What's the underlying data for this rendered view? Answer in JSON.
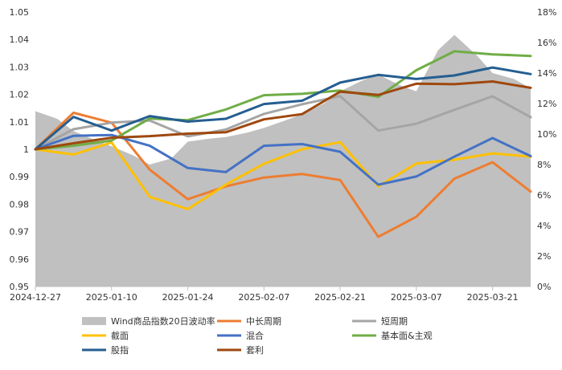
{
  "chart_data": {
    "type": "line",
    "title": "",
    "x": [
      "2024-12-27",
      "2025-01-03",
      "2025-01-10",
      "2025-01-17",
      "2025-01-24",
      "2025-01-31",
      "2025-02-07",
      "2025-02-14",
      "2025-02-21",
      "2025-02-28",
      "2025-03-07",
      "2025-03-14",
      "2025-03-21",
      "2025-03-28"
    ],
    "x_tick_labels": [
      "2024-12-27",
      "2025-01-10",
      "2025-01-24",
      "2025-02-07",
      "2025-02-21",
      "2025-03-07",
      "2025-03-21"
    ],
    "y_left": {
      "min": 0.95,
      "max": 1.05,
      "ticks": [
        "0.95",
        "0.96",
        "0.97",
        "0.98",
        "0.99",
        "1",
        "1.01",
        "1.02",
        "1.03",
        "1.04",
        "1.05"
      ]
    },
    "y_right": {
      "min": 0,
      "max": 18,
      "ticks": [
        "0%",
        "2%",
        "4%",
        "6%",
        "8%",
        "10%",
        "12%",
        "14%",
        "16%",
        "18%"
      ]
    },
    "area_series": {
      "name": "Wind商品指数20日波动率",
      "axis": "right",
      "color": "#c0c0c0",
      "x": [
        "2024-12-27",
        "2024-12-31",
        "2025-01-03",
        "2025-01-07",
        "2025-01-10",
        "2025-01-14",
        "2025-01-17",
        "2025-01-21",
        "2025-01-24",
        "2025-01-28",
        "2025-01-31",
        "2025-02-04",
        "2025-02-07",
        "2025-02-11",
        "2025-02-14",
        "2025-02-18",
        "2025-02-21",
        "2025-02-25",
        "2025-02-28",
        "2025-03-04",
        "2025-03-07",
        "2025-03-11",
        "2025-03-14",
        "2025-03-18",
        "2025-03-21",
        "2025-03-25",
        "2025-03-28"
      ],
      "values": [
        11.5,
        11.0,
        10.2,
        9.6,
        9.2,
        8.6,
        8.0,
        8.4,
        9.5,
        9.7,
        9.8,
        10.1,
        10.4,
        10.9,
        11.3,
        12.0,
        12.8,
        13.5,
        13.9,
        13.2,
        12.8,
        15.5,
        16.5,
        15.2,
        14.0,
        13.6,
        13.0
      ]
    },
    "series": [
      {
        "name": "中长周期",
        "color": "#ed7d31",
        "values": [
          1.0,
          1.0133,
          1.0097,
          0.9926,
          0.9818,
          0.9865,
          0.9897,
          0.991,
          0.9888,
          0.9681,
          0.9754,
          0.9893,
          0.9953,
          0.9846
        ]
      },
      {
        "name": "短周期",
        "color": "#a5a5a5",
        "values": [
          1.0,
          1.0073,
          1.0097,
          1.0105,
          1.0047,
          1.0072,
          1.0129,
          1.0164,
          1.0194,
          1.0068,
          1.0093,
          1.0144,
          1.0193,
          1.0117
        ]
      },
      {
        "name": "截面",
        "color": "#ffc000",
        "values": [
          1.0,
          0.9981,
          1.0025,
          0.9827,
          0.9782,
          0.9871,
          0.9947,
          1.0,
          1.0026,
          0.9865,
          0.9948,
          0.9962,
          0.9985,
          0.9973
        ]
      },
      {
        "name": "混合",
        "color": "#4472c4",
        "values": [
          1.0,
          1.0049,
          1.0052,
          1.0013,
          0.9932,
          0.9917,
          1.0013,
          1.0019,
          0.9991,
          0.9871,
          0.9901,
          0.9973,
          1.0041,
          0.9975
        ]
      },
      {
        "name": "基本面&主观",
        "color": "#70ad47",
        "values": [
          1.0,
          1.0013,
          1.0032,
          1.0112,
          1.0106,
          1.0145,
          1.0197,
          1.0202,
          1.0214,
          1.0191,
          1.0288,
          1.0357,
          1.0346,
          1.034
        ]
      },
      {
        "name": "股指",
        "color": "#255e91",
        "values": [
          1.0,
          1.0118,
          1.0068,
          1.0121,
          1.0101,
          1.0111,
          1.0165,
          1.0177,
          1.0243,
          1.0271,
          1.0256,
          1.0269,
          1.0298,
          1.0274
        ]
      },
      {
        "name": "套利",
        "color": "#9e480e",
        "values": [
          1.0,
          1.0022,
          1.0042,
          1.0048,
          1.0057,
          1.0062,
          1.0109,
          1.0128,
          1.021,
          1.0198,
          1.0239,
          1.0237,
          1.0247,
          1.0224
        ]
      }
    ],
    "legend_position": "bottom",
    "grid": false
  }
}
